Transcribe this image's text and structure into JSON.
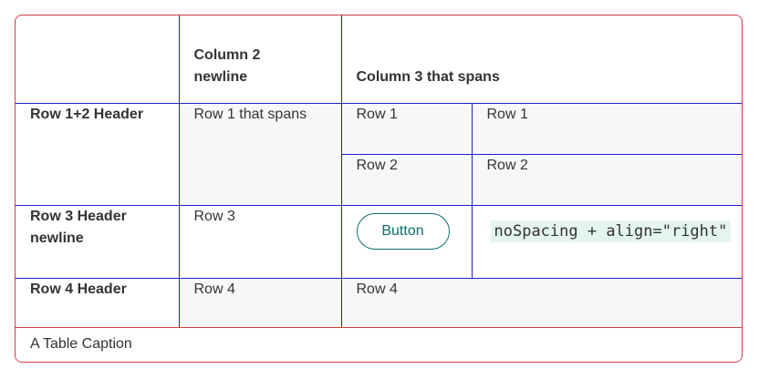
{
  "table": {
    "header": {
      "col1": "",
      "col2_line1": "Column 2",
      "col2_line2": "newline",
      "col3": "Column 3 that spans"
    },
    "rows": {
      "r12_header": "Row 1+2 Header",
      "r1_spanning": "Row 1 that spans",
      "r1_c3": "Row 1",
      "r1_c4": "Row 1",
      "r2_c3": "Row 2",
      "r2_c4": "Row 2",
      "r3_header_line1": "Row 3 Header",
      "r3_header_line2": "newline",
      "r3_c2": "Row 3",
      "r3_button": "Button",
      "r3_code": "noSpacing + align=\"right\"",
      "r4_header": "Row 4 Header",
      "r4_c2": "Row 4",
      "r4_c3": "Row 4"
    },
    "caption": "A Table Caption"
  },
  "colors": {
    "frame_border": "#d2394a",
    "cell_border": "#2020c8",
    "shaded_cell": "#f7f7f7",
    "button_accent": "#0f6e6e",
    "code_background": "#e4f5ee"
  }
}
